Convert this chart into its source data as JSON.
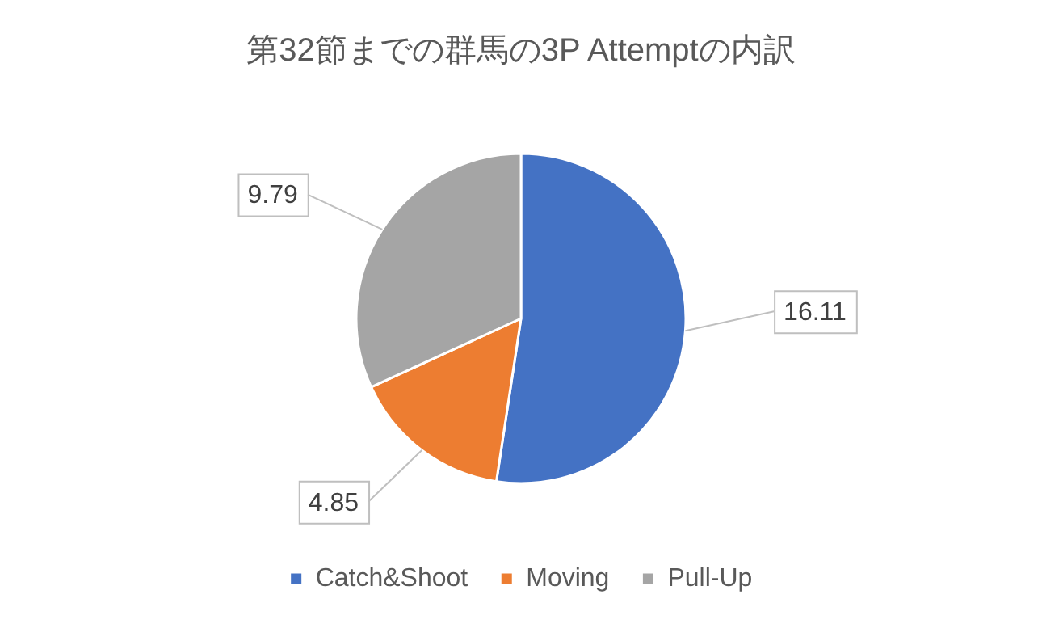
{
  "chart_data": {
    "type": "pie",
    "title": "第32節までの群馬の3P Attemptの内訳",
    "categories": [
      "Catch&Shoot",
      "Moving",
      "Pull-Up"
    ],
    "values": [
      16.11,
      4.85,
      9.79
    ],
    "colors": [
      "#4472c4",
      "#ed7d31",
      "#a5a5a5"
    ],
    "data_labels": true,
    "legend": "bottom"
  }
}
